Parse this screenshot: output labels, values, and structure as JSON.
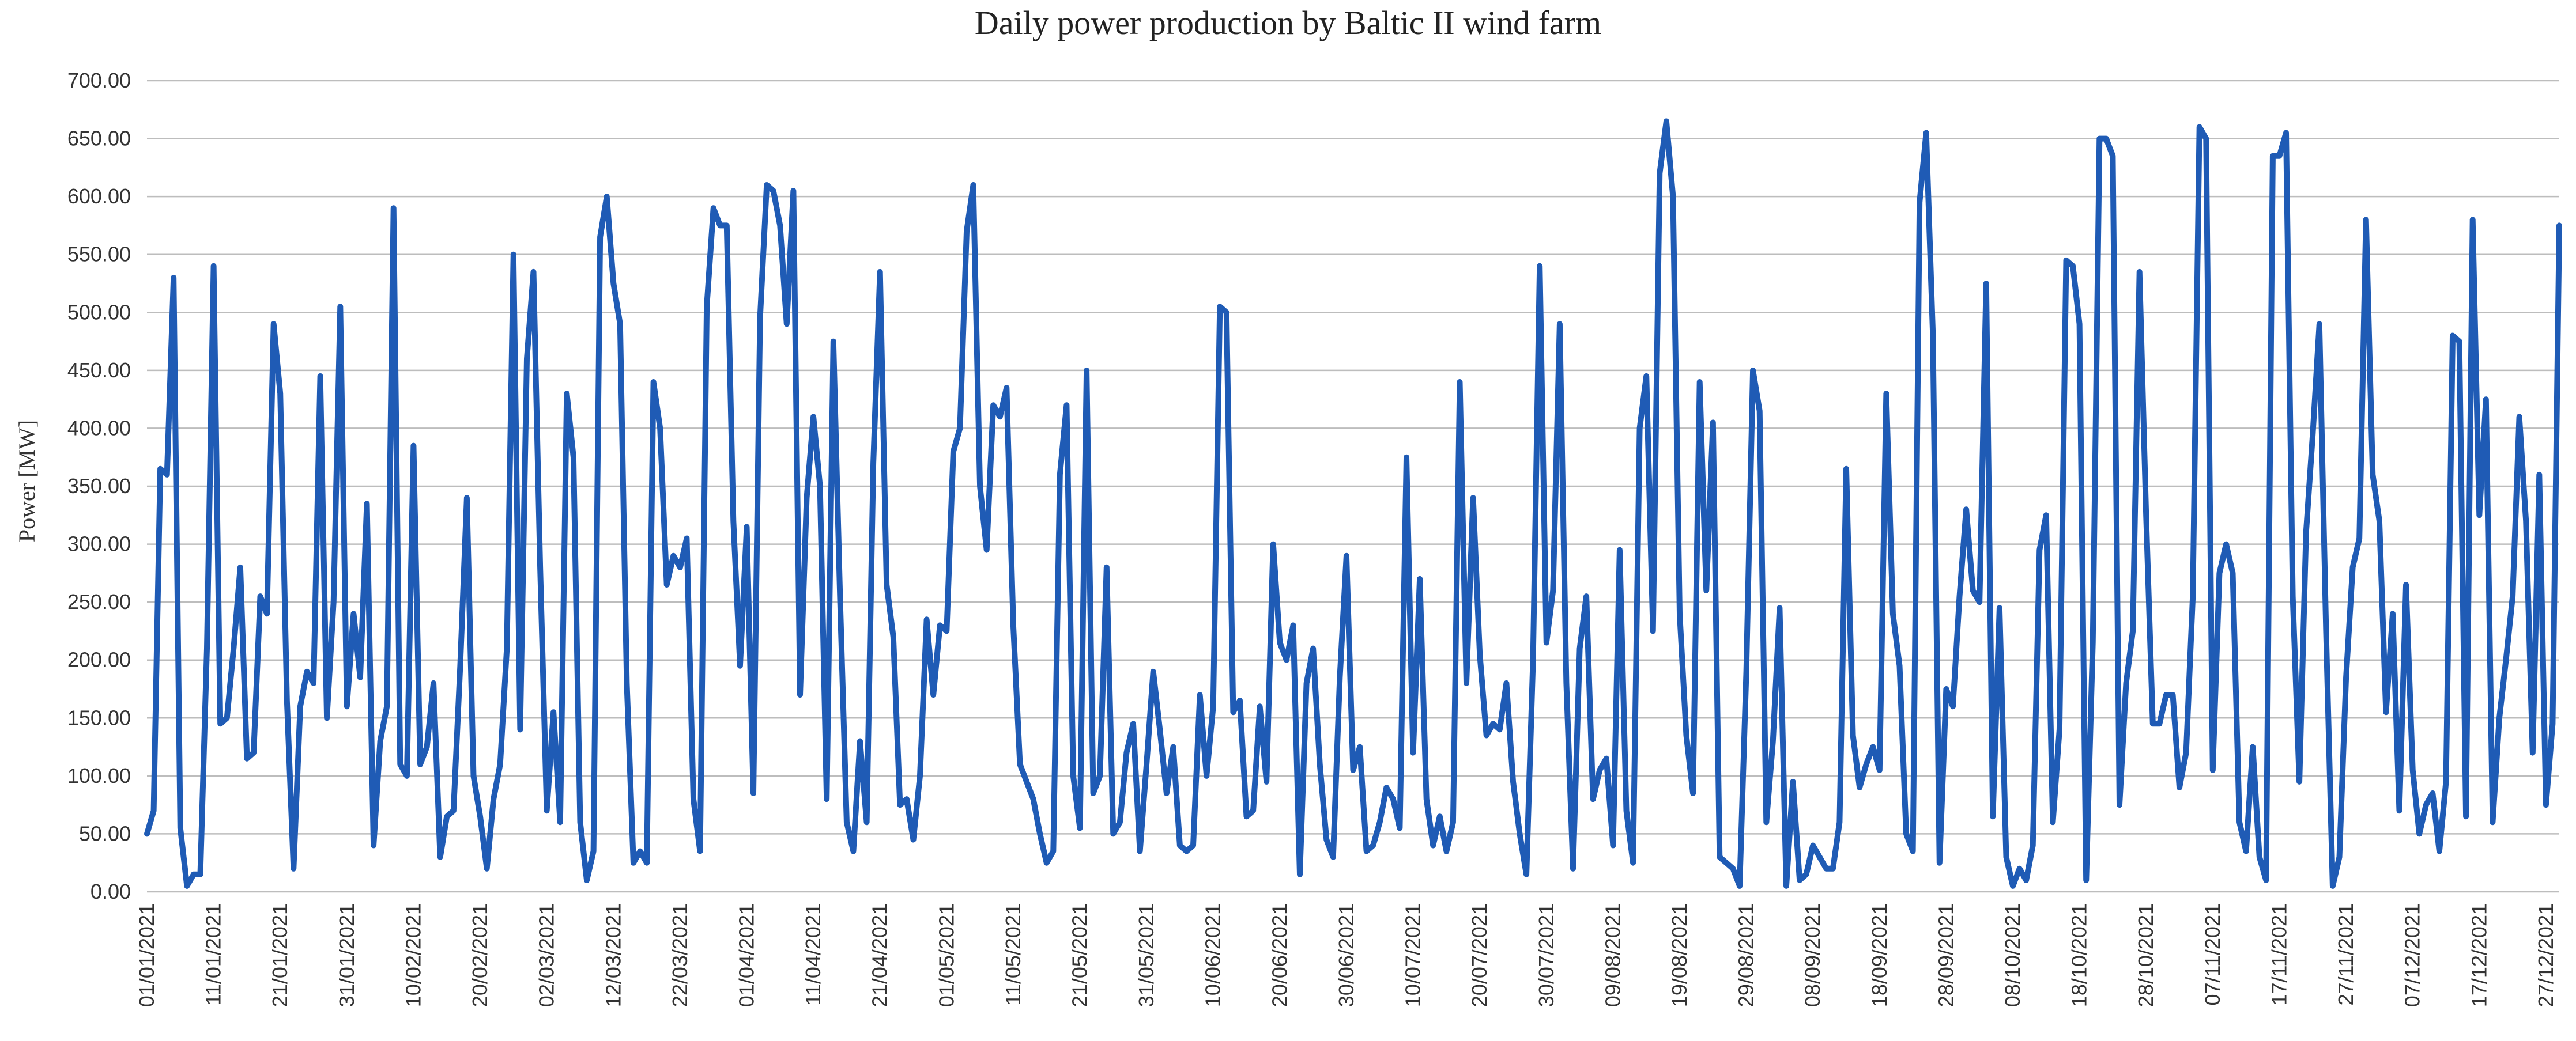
{
  "chart_data": {
    "type": "line",
    "title": "Daily  power production by Baltic  II wind farm",
    "xlabel": "",
    "ylabel": "Power [MW]",
    "ylim": [
      0,
      700
    ],
    "yticks": [
      "0.00",
      "50.00",
      "100.00",
      "150.00",
      "200.00",
      "250.00",
      "300.00",
      "350.00",
      "400.00",
      "450.00",
      "500.00",
      "550.00",
      "600.00",
      "650.00",
      "700.00"
    ],
    "xticks": [
      "01/01/2021",
      "11/01/2021",
      "21/01/2021",
      "31/01/2021",
      "10/02/2021",
      "20/02/2021",
      "02/03/2021",
      "12/03/2021",
      "22/03/2021",
      "01/04/2021",
      "11/04/2021",
      "21/04/2021",
      "01/05/2021",
      "11/05/2021",
      "21/05/2021",
      "31/05/2021",
      "10/06/2021",
      "20/06/2021",
      "30/06/2021",
      "10/07/2021",
      "20/07/2021",
      "30/07/2021",
      "09/08/2021",
      "19/08/2021",
      "29/08/2021",
      "08/09/2021",
      "18/09/2021",
      "28/09/2021",
      "08/10/2021",
      "18/10/2021",
      "28/10/2021",
      "07/11/2021",
      "17/11/2021",
      "27/11/2021",
      "07/12/2021",
      "17/12/2021",
      "27/12/2021"
    ],
    "grid": true,
    "color": "#1f5bb5",
    "series": [
      {
        "name": "Power",
        "values": [
          50,
          70,
          365,
          360,
          530,
          55,
          5,
          15,
          15,
          210,
          540,
          145,
          150,
          210,
          280,
          115,
          120,
          255,
          240,
          490,
          430,
          165,
          20,
          160,
          190,
          180,
          445,
          150,
          250,
          505,
          160,
          240,
          185,
          335,
          40,
          130,
          160,
          590,
          110,
          100,
          385,
          110,
          125,
          180,
          30,
          65,
          70,
          195,
          340,
          100,
          65,
          20,
          80,
          110,
          210,
          550,
          140,
          460,
          535,
          280,
          70,
          155,
          60,
          430,
          375,
          60,
          10,
          35,
          565,
          600,
          525,
          490,
          180,
          25,
          35,
          25,
          440,
          400,
          265,
          290,
          280,
          305,
          80,
          35,
          505,
          590,
          575,
          575,
          320,
          195,
          315,
          85,
          495,
          610,
          605,
          575,
          490,
          605,
          170,
          340,
          410,
          350,
          80,
          475,
          255,
          60,
          35,
          130,
          60,
          370,
          535,
          265,
          220,
          75,
          80,
          45,
          100,
          235,
          170,
          230,
          225,
          380,
          400,
          570,
          610,
          350,
          295,
          420,
          410,
          435,
          230,
          110,
          95,
          80,
          50,
          25,
          35,
          360,
          420,
          100,
          55,
          450,
          85,
          100,
          280,
          50,
          60,
          120,
          145,
          35,
          110,
          190,
          140,
          85,
          125,
          40,
          35,
          40,
          170,
          100,
          160,
          505,
          500,
          155,
          165,
          65,
          70,
          160,
          95,
          300,
          215,
          200,
          230,
          15,
          180,
          210,
          110,
          45,
          30,
          185,
          290,
          105,
          125,
          35,
          40,
          60,
          90,
          80,
          55,
          375,
          120,
          270,
          80,
          40,
          65,
          35,
          60,
          440,
          180,
          340,
          205,
          135,
          145,
          140,
          180,
          95,
          50,
          15,
          200,
          540,
          215,
          260,
          490,
          180,
          20,
          210,
          255,
          80,
          105,
          115,
          40,
          295,
          70,
          25,
          400,
          445,
          225,
          620,
          665,
          600,
          240,
          135,
          85,
          440,
          260,
          405,
          30,
          25,
          20,
          5,
          190,
          450,
          415,
          60,
          130,
          245,
          5,
          95,
          10,
          15,
          40,
          30,
          20,
          20,
          60,
          365,
          135,
          90,
          110,
          125,
          105,
          430,
          240,
          195,
          50,
          35,
          595,
          655,
          480,
          25,
          175,
          160,
          255,
          330,
          260,
          250,
          525,
          65,
          245,
          30,
          5,
          20,
          10,
          40,
          295,
          325,
          60,
          140,
          545,
          540,
          490,
          10,
          215,
          650,
          650,
          635,
          75,
          180,
          225,
          535,
          325,
          145,
          145,
          170,
          170,
          90,
          120,
          255,
          660,
          650,
          105,
          275,
          300,
          275,
          60,
          35,
          125,
          30,
          10,
          635,
          635,
          655,
          255,
          95,
          310,
          395,
          490,
          225,
          5,
          30,
          185,
          280,
          305,
          580,
          360,
          320,
          155,
          240,
          70,
          265,
          105,
          50,
          75,
          85,
          35,
          95,
          480,
          475,
          65,
          580,
          325,
          425,
          60,
          150,
          200,
          255,
          410,
          320,
          120,
          360,
          75,
          145,
          575
        ]
      }
    ]
  }
}
